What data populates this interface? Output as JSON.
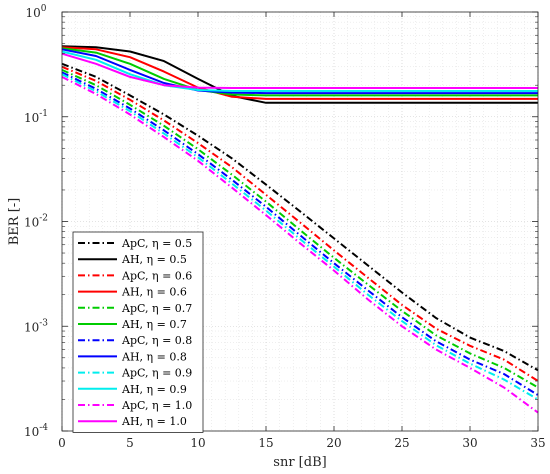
{
  "chart_data": {
    "type": "line",
    "xlabel": "snr [dB]",
    "ylabel": "BER [-]",
    "xlim": [
      0,
      35
    ],
    "ylim": [
      0.0001,
      1
    ],
    "yscale": "log",
    "grid": true,
    "minor_grid": true,
    "legend_position": "bottom-left",
    "x_ticks": [
      0,
      5,
      10,
      15,
      20,
      25,
      30,
      35
    ],
    "x_tick_labels": [
      "0",
      "5",
      "10",
      "15",
      "20",
      "25",
      "30",
      "35"
    ],
    "y_ticks": [
      0.0001,
      0.001,
      0.01,
      0.1,
      1
    ],
    "y_tick_labels": [
      {
        "base": "10",
        "exp": "-4"
      },
      {
        "base": "10",
        "exp": "-3"
      },
      {
        "base": "10",
        "exp": "-2"
      },
      {
        "base": "10",
        "exp": "-1"
      },
      {
        "base": "10",
        "exp": "0"
      }
    ],
    "x": [
      0,
      2.5,
      5,
      7.5,
      10,
      12.5,
      15,
      17.5,
      20,
      22.5,
      25,
      27.5,
      30,
      32.5,
      35
    ],
    "series": [
      {
        "name": "ApC, η = 0.5",
        "color": "#000000",
        "dash": "dashdot",
        "values": [
          0.32,
          0.24,
          0.16,
          0.105,
          0.066,
          0.04,
          0.0225,
          0.0125,
          0.0069,
          0.0038,
          0.0021,
          0.0012,
          0.00078,
          0.00058,
          0.00038
        ]
      },
      {
        "name": "AH, η = 0.5",
        "color": "#000000",
        "dash": "solid",
        "values": [
          0.47,
          0.46,
          0.42,
          0.34,
          0.23,
          0.158,
          0.136,
          0.136,
          0.136,
          0.136,
          0.136,
          0.136,
          0.136,
          0.136,
          0.136
        ]
      },
      {
        "name": "ApC, η = 0.6",
        "color": "#ff0000",
        "dash": "dashdot",
        "values": [
          0.3,
          0.22,
          0.145,
          0.092,
          0.056,
          0.033,
          0.018,
          0.0098,
          0.0053,
          0.0029,
          0.0016,
          0.00095,
          0.00065,
          0.00048,
          0.0003
        ]
      },
      {
        "name": "AH, η = 0.6",
        "color": "#ff0000",
        "dash": "solid",
        "values": [
          0.46,
          0.44,
          0.37,
          0.27,
          0.19,
          0.155,
          0.148,
          0.148,
          0.148,
          0.148,
          0.148,
          0.148,
          0.148,
          0.148,
          0.148
        ]
      },
      {
        "name": "ApC, η = 0.7",
        "color": "#00cc00",
        "dash": "dashdot",
        "values": [
          0.28,
          0.2,
          0.13,
          0.082,
          0.049,
          0.028,
          0.0155,
          0.0083,
          0.0045,
          0.0025,
          0.0014,
          0.00082,
          0.00055,
          0.0004,
          0.00026
        ]
      },
      {
        "name": "AH, η = 0.7",
        "color": "#00cc00",
        "dash": "solid",
        "values": [
          0.45,
          0.41,
          0.32,
          0.23,
          0.18,
          0.163,
          0.16,
          0.16,
          0.16,
          0.16,
          0.16,
          0.16,
          0.16,
          0.16,
          0.16
        ]
      },
      {
        "name": "ApC, η = 0.8",
        "color": "#0000ff",
        "dash": "dashdot",
        "values": [
          0.265,
          0.185,
          0.12,
          0.074,
          0.044,
          0.025,
          0.0138,
          0.0074,
          0.004,
          0.0022,
          0.00122,
          0.00072,
          0.00048,
          0.00035,
          0.00022
        ]
      },
      {
        "name": "AH, η = 0.8",
        "color": "#0000ff",
        "dash": "solid",
        "values": [
          0.44,
          0.38,
          0.28,
          0.21,
          0.178,
          0.17,
          0.168,
          0.168,
          0.168,
          0.168,
          0.168,
          0.168,
          0.168,
          0.168,
          0.168
        ]
      },
      {
        "name": "ApC, η = 0.9",
        "color": "#00eeee",
        "dash": "dashdot",
        "values": [
          0.255,
          0.175,
          0.113,
          0.069,
          0.041,
          0.023,
          0.0127,
          0.0068,
          0.0037,
          0.002,
          0.00112,
          0.00066,
          0.00044,
          0.00031,
          0.0002
        ]
      },
      {
        "name": "AH, η = 0.9",
        "color": "#00eeee",
        "dash": "solid",
        "values": [
          0.42,
          0.35,
          0.255,
          0.2,
          0.18,
          0.176,
          0.176,
          0.176,
          0.176,
          0.176,
          0.176,
          0.176,
          0.176,
          0.176,
          0.176
        ]
      },
      {
        "name": "ApC, η = 1.0",
        "color": "#ff00ff",
        "dash": "dashdot",
        "values": [
          0.24,
          0.165,
          0.105,
          0.064,
          0.038,
          0.021,
          0.0115,
          0.0062,
          0.0034,
          0.0018,
          0.001,
          0.0006,
          0.0004,
          0.00026,
          0.00015
        ]
      },
      {
        "name": "AH, η = 1.0",
        "color": "#ff00ff",
        "dash": "solid",
        "values": [
          0.4,
          0.32,
          0.24,
          0.2,
          0.19,
          0.188,
          0.188,
          0.188,
          0.188,
          0.188,
          0.188,
          0.188,
          0.188,
          0.188,
          0.188
        ]
      }
    ]
  }
}
